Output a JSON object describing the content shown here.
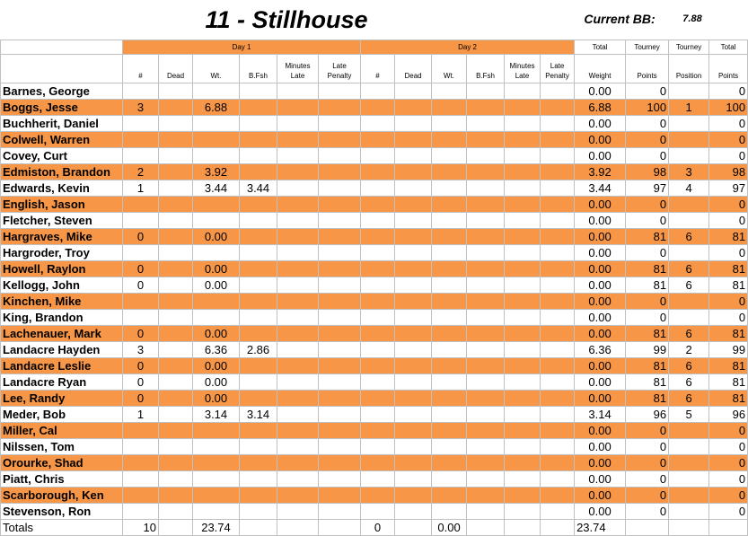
{
  "title": "11 - Stillhouse",
  "current_bb_label": "Current BB:",
  "current_bb_value": "7.88",
  "header1": {
    "day1": "Day 1",
    "day2": "Day 2",
    "total": "Total",
    "tourney_points": "Tourney",
    "tourney_position": "Tourney",
    "total_points": "Total"
  },
  "header2": {
    "count": "#",
    "dead": "Dead",
    "wt": "Wt.",
    "bfsh": "B.Fsh",
    "minutes_late": "Minutes Late",
    "late_penalty": "Late Penalty",
    "count2": "#",
    "dead2": "Dead",
    "wt2": "Wt.",
    "bfsh2": "B.Fsh",
    "minutes_late2": "Minutes Late",
    "late_penalty2": "Late Penalty",
    "weight": "Weight",
    "points": "Points",
    "position": "Position",
    "total_points": "Points"
  },
  "rows": [
    {
      "name": "Barnes, George",
      "count": "",
      "wt": "",
      "bfsh": "",
      "weight": "0.00",
      "tpoints": "0",
      "position": "",
      "points": "0"
    },
    {
      "name": "Boggs, Jesse",
      "count": "3",
      "wt": "6.88",
      "bfsh": "",
      "weight": "6.88",
      "tpoints": "100",
      "position": "1",
      "points": "100"
    },
    {
      "name": "Buchherit, Daniel",
      "count": "",
      "wt": "",
      "bfsh": "",
      "weight": "0.00",
      "tpoints": "0",
      "position": "",
      "points": "0"
    },
    {
      "name": "Colwell, Warren",
      "count": "",
      "wt": "",
      "bfsh": "",
      "weight": "0.00",
      "tpoints": "0",
      "position": "",
      "points": "0"
    },
    {
      "name": "Covey, Curt",
      "count": "",
      "wt": "",
      "bfsh": "",
      "weight": "0.00",
      "tpoints": "0",
      "position": "",
      "points": "0"
    },
    {
      "name": "Edmiston, Brandon",
      "count": "2",
      "wt": "3.92",
      "bfsh": "",
      "weight": "3.92",
      "tpoints": "98",
      "position": "3",
      "points": "98"
    },
    {
      "name": "Edwards, Kevin",
      "count": "1",
      "wt": "3.44",
      "bfsh": "3.44",
      "weight": "3.44",
      "tpoints": "97",
      "position": "4",
      "points": "97"
    },
    {
      "name": "English, Jason",
      "count": "",
      "wt": "",
      "bfsh": "",
      "weight": "0.00",
      "tpoints": "0",
      "position": "",
      "points": "0"
    },
    {
      "name": "Fletcher, Steven",
      "count": "",
      "wt": "",
      "bfsh": "",
      "weight": "0.00",
      "tpoints": "0",
      "position": "",
      "points": "0"
    },
    {
      "name": "Hargraves, Mike",
      "count": "0",
      "wt": "0.00",
      "bfsh": "",
      "weight": "0.00",
      "tpoints": "81",
      "position": "6",
      "points": "81"
    },
    {
      "name": "Hargroder, Troy",
      "count": "",
      "wt": "",
      "bfsh": "",
      "weight": "0.00",
      "tpoints": "0",
      "position": "",
      "points": "0"
    },
    {
      "name": "Howell, Raylon",
      "count": "0",
      "wt": "0.00",
      "bfsh": "",
      "weight": "0.00",
      "tpoints": "81",
      "position": "6",
      "points": "81"
    },
    {
      "name": "Kellogg, John",
      "count": "0",
      "wt": "0.00",
      "bfsh": "",
      "weight": "0.00",
      "tpoints": "81",
      "position": "6",
      "points": "81"
    },
    {
      "name": "Kinchen, Mike",
      "count": "",
      "wt": "",
      "bfsh": "",
      "weight": "0.00",
      "tpoints": "0",
      "position": "",
      "points": "0"
    },
    {
      "name": "King, Brandon",
      "count": "",
      "wt": "",
      "bfsh": "",
      "weight": "0.00",
      "tpoints": "0",
      "position": "",
      "points": "0"
    },
    {
      "name": "Lachenauer, Mark",
      "count": "0",
      "wt": "0.00",
      "bfsh": "",
      "weight": "0.00",
      "tpoints": "81",
      "position": "6",
      "points": "81"
    },
    {
      "name": "Landacre Hayden",
      "count": "3",
      "wt": "6.36",
      "bfsh": "2.86",
      "weight": "6.36",
      "tpoints": "99",
      "position": "2",
      "points": "99"
    },
    {
      "name": "Landacre Leslie",
      "count": "0",
      "wt": "0.00",
      "bfsh": "",
      "weight": "0.00",
      "tpoints": "81",
      "position": "6",
      "points": "81"
    },
    {
      "name": "Landacre Ryan",
      "count": "0",
      "wt": "0.00",
      "bfsh": "",
      "weight": "0.00",
      "tpoints": "81",
      "position": "6",
      "points": "81"
    },
    {
      "name": "Lee, Randy",
      "count": "0",
      "wt": "0.00",
      "bfsh": "",
      "weight": "0.00",
      "tpoints": "81",
      "position": "6",
      "points": "81"
    },
    {
      "name": "Meder, Bob",
      "count": "1",
      "wt": "3.14",
      "bfsh": "3.14",
      "weight": "3.14",
      "tpoints": "96",
      "position": "5",
      "points": "96"
    },
    {
      "name": "Miller, Cal",
      "count": "",
      "wt": "",
      "bfsh": "",
      "weight": "0.00",
      "tpoints": "0",
      "position": "",
      "points": "0"
    },
    {
      "name": "Nilssen, Tom",
      "count": "",
      "wt": "",
      "bfsh": "",
      "weight": "0.00",
      "tpoints": "0",
      "position": "",
      "points": "0"
    },
    {
      "name": "Orourke, Shad",
      "count": "",
      "wt": "",
      "bfsh": "",
      "weight": "0.00",
      "tpoints": "0",
      "position": "",
      "points": "0"
    },
    {
      "name": "Piatt, Chris",
      "count": "",
      "wt": "",
      "bfsh": "",
      "weight": "0.00",
      "tpoints": "0",
      "position": "",
      "points": "0"
    },
    {
      "name": "Scarborough, Ken",
      "count": "",
      "wt": "",
      "bfsh": "",
      "weight": "0.00",
      "tpoints": "0",
      "position": "",
      "points": "0"
    },
    {
      "name": "Stevenson, Ron",
      "count": "",
      "wt": "",
      "bfsh": "",
      "weight": "0.00",
      "tpoints": "0",
      "position": "",
      "points": "0"
    }
  ],
  "totals": {
    "label": "Totals",
    "count": "10",
    "wt": "23.74",
    "count2": "0",
    "wt2": "0.00",
    "weight": "23.74"
  },
  "colors": {
    "orange": "#f79646",
    "gridline": "#c0c0c0"
  }
}
